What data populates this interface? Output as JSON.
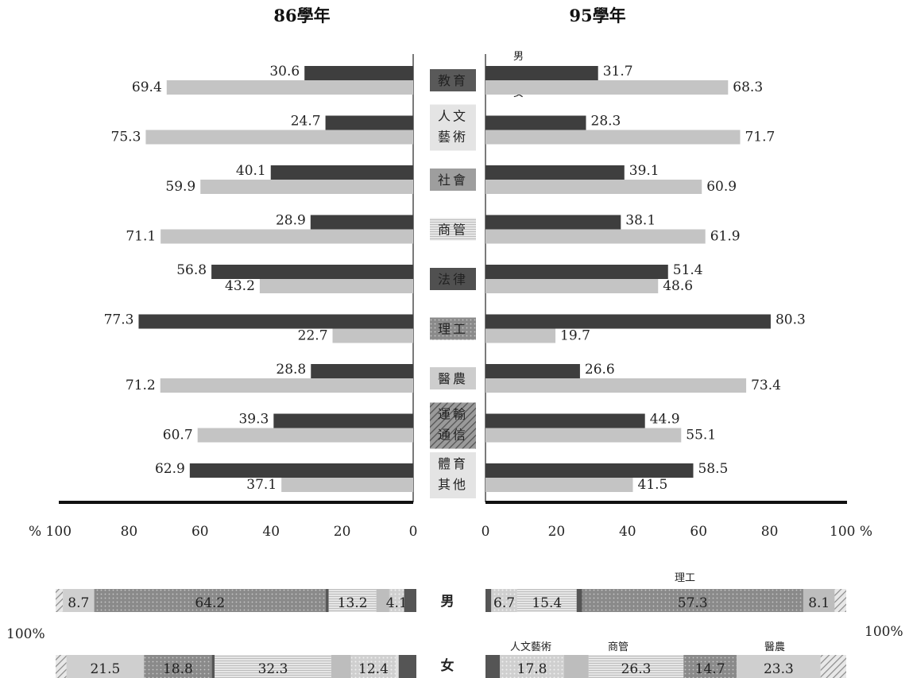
{
  "chart_data": {
    "type": "bar",
    "panel_titles": [
      "86學年",
      "95學年"
    ],
    "categories": [
      [
        "教育"
      ],
      [
        "人文",
        "藝術"
      ],
      [
        "社會"
      ],
      [
        "商管"
      ],
      [
        "法律"
      ],
      [
        "理工"
      ],
      [
        "醫農"
      ],
      [
        "運輸",
        "通信"
      ],
      [
        "體育",
        "其他"
      ]
    ],
    "legend": {
      "male": "男",
      "female": "女"
    },
    "series": {
      "86": {
        "male": [
          30.6,
          24.7,
          40.1,
          28.9,
          56.8,
          77.3,
          28.8,
          39.3,
          62.9
        ],
        "female": [
          69.4,
          75.3,
          59.9,
          71.1,
          43.2,
          22.7,
          71.2,
          60.7,
          37.1
        ]
      },
      "95": {
        "male": [
          31.7,
          28.3,
          39.1,
          38.1,
          51.4,
          80.3,
          26.6,
          44.9,
          58.5
        ],
        "female": [
          68.3,
          71.7,
          60.9,
          61.9,
          48.6,
          19.7,
          73.4,
          55.1,
          41.5
        ]
      }
    },
    "left_axis_ticks": [
      "% 100",
      "80",
      "60",
      "40",
      "20",
      "0"
    ],
    "right_axis_ticks": [
      "0",
      "20",
      "40",
      "60",
      "80",
      "100 %"
    ],
    "xlim": [
      0,
      100
    ],
    "composition": {
      "scale_label": "100%",
      "rows": [
        "男",
        "女"
      ],
      "y86": {
        "male": [
          {
            "value": 2.0,
            "label": ""
          },
          {
            "value": 8.7,
            "label": "8.7"
          },
          {
            "value": 64.2,
            "label": "64.2"
          },
          {
            "value": 0.8,
            "label": ""
          },
          {
            "value": 13.2,
            "label": "13.2"
          },
          {
            "value": 3.6,
            "label": ""
          },
          {
            "value": 4.1,
            "label": "4.1"
          },
          {
            "value": 3.4,
            "label": ""
          }
        ],
        "female": [
          {
            "value": 3.0,
            "label": ""
          },
          {
            "value": 21.5,
            "label": "21.5"
          },
          {
            "value": 18.8,
            "label": "18.8"
          },
          {
            "value": 0.8,
            "label": ""
          },
          {
            "value": 32.3,
            "label": "32.3"
          },
          {
            "value": 5.5,
            "label": ""
          },
          {
            "value": 12.4,
            "label": "12.4"
          },
          {
            "value": 0.8,
            "label": ""
          },
          {
            "value": 4.9,
            "label": ""
          }
        ]
      },
      "y95": {
        "male": [
          {
            "value": 1.5,
            "label": ""
          },
          {
            "value": 6.7,
            "label": "6.7"
          },
          {
            "value": 15.4,
            "label": "15.4"
          },
          {
            "value": 1.4,
            "label": ""
          },
          {
            "value": 57.3,
            "label": "57.3"
          },
          {
            "value": 8.1,
            "label": "8.1"
          },
          {
            "value": 3.0,
            "label": ""
          }
        ],
        "female": [
          {
            "value": 4.0,
            "label": ""
          },
          {
            "value": 17.8,
            "label": "17.8"
          },
          {
            "value": 6.8,
            "label": ""
          },
          {
            "value": 26.3,
            "label": "26.3"
          },
          {
            "value": 14.7,
            "label": "14.7"
          },
          {
            "value": 23.3,
            "label": "23.3"
          },
          {
            "value": 7.1,
            "label": ""
          }
        ]
      },
      "annotations_95": [
        "理工",
        "人文藝術",
        "商管",
        "醫農"
      ]
    }
  }
}
